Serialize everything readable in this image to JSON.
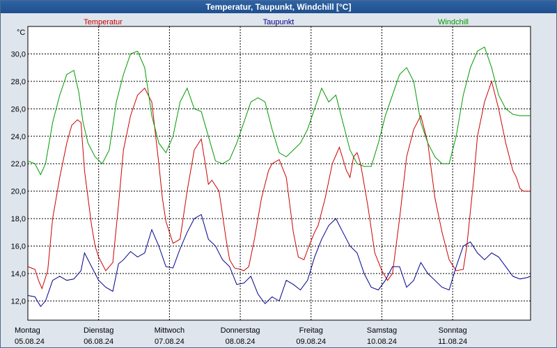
{
  "title": "Temperatur, Taupunkt, Windchill [°C]",
  "chart_data": {
    "type": "line",
    "title": "Temperatur, Taupunkt, Windchill [°C]",
    "ylabel": "°C",
    "ylim": [
      10.6,
      32.0
    ],
    "yticks": [
      12,
      14,
      16,
      18,
      20,
      22,
      24,
      26,
      28,
      30
    ],
    "ytick_labels": [
      "12,0",
      "14,0",
      "16,0",
      "18,0",
      "20,0",
      "22,0",
      "24,0",
      "26,0",
      "28,0",
      "30,0"
    ],
    "xlim": [
      0,
      7.1
    ],
    "x_days": [
      {
        "day": "Montag",
        "date": "05.08.24"
      },
      {
        "day": "Dienstag",
        "date": "06.08.24"
      },
      {
        "day": "Mittwoch",
        "date": "07.08.24"
      },
      {
        "day": "Donnerstag",
        "date": "08.08.24"
      },
      {
        "day": "Freitag",
        "date": "09.08.24"
      },
      {
        "day": "Samstag",
        "date": "10.08.24"
      },
      {
        "day": "Sonntag",
        "date": "11.08.24"
      }
    ],
    "grid": true,
    "legend_position": "top",
    "series": [
      {
        "name": "Temperatur",
        "color": "#cc0000",
        "x": [
          0.0,
          0.1,
          0.15,
          0.2,
          0.28,
          0.35,
          0.45,
          0.55,
          0.62,
          0.7,
          0.75,
          0.8,
          0.9,
          0.95,
          1.0,
          1.1,
          1.2,
          1.28,
          1.35,
          1.45,
          1.55,
          1.65,
          1.75,
          1.85,
          1.9,
          1.95,
          2.05,
          2.15,
          2.25,
          2.35,
          2.45,
          2.5,
          2.55,
          2.6,
          2.7,
          2.8,
          2.85,
          2.92,
          3.0,
          3.05,
          3.12,
          3.2,
          3.3,
          3.4,
          3.45,
          3.55,
          3.65,
          3.75,
          3.82,
          3.9,
          3.97,
          4.05,
          4.1,
          4.2,
          4.3,
          4.4,
          4.5,
          4.55,
          4.6,
          4.65,
          4.7,
          4.75,
          4.8,
          4.9,
          5.0,
          5.08,
          5.15,
          5.25,
          5.35,
          5.45,
          5.55,
          5.65,
          5.75,
          5.85,
          5.9,
          5.95,
          6.05,
          6.15,
          6.2,
          6.3,
          6.35,
          6.45,
          6.55,
          6.65,
          6.75,
          6.85,
          6.9,
          6.95,
          7.0,
          7.05,
          7.1
        ],
        "y": [
          14.5,
          14.3,
          13.5,
          12.9,
          14.2,
          18.0,
          21.0,
          23.5,
          24.8,
          25.2,
          25.0,
          21.5,
          17.5,
          16.0,
          15.2,
          14.2,
          14.8,
          19.0,
          23.0,
          25.5,
          27.0,
          27.5,
          26.5,
          22.0,
          19.5,
          17.8,
          16.2,
          16.5,
          20.0,
          23.0,
          23.8,
          22.2,
          20.5,
          20.8,
          20.0,
          16.5,
          15.0,
          14.4,
          14.3,
          14.2,
          14.5,
          16.5,
          19.5,
          21.5,
          22.0,
          22.3,
          21.0,
          17.0,
          15.2,
          15.0,
          16.0,
          17.0,
          17.5,
          19.5,
          22.0,
          23.2,
          21.5,
          21.0,
          22.5,
          22.8,
          22.0,
          20.5,
          19.0,
          15.5,
          14.2,
          13.5,
          14.0,
          18.0,
          22.5,
          24.5,
          25.5,
          23.5,
          19.5,
          17.0,
          16.0,
          15.0,
          14.2,
          14.3,
          16.0,
          21.0,
          24.0,
          26.5,
          28.0,
          26.0,
          23.5,
          21.5,
          21.0,
          20.2,
          20.0,
          20.0,
          20.0
        ]
      },
      {
        "name": "Taupunkt",
        "color": "#00008b",
        "x": [
          0.0,
          0.1,
          0.18,
          0.25,
          0.35,
          0.45,
          0.55,
          0.65,
          0.75,
          0.8,
          0.9,
          1.0,
          1.1,
          1.2,
          1.28,
          1.35,
          1.45,
          1.55,
          1.65,
          1.75,
          1.85,
          1.95,
          2.05,
          2.15,
          2.25,
          2.35,
          2.45,
          2.55,
          2.65,
          2.75,
          2.85,
          2.95,
          3.05,
          3.15,
          3.25,
          3.35,
          3.45,
          3.55,
          3.65,
          3.75,
          3.85,
          3.95,
          4.05,
          4.15,
          4.25,
          4.35,
          4.45,
          4.55,
          4.65,
          4.75,
          4.85,
          4.95,
          5.05,
          5.15,
          5.25,
          5.35,
          5.45,
          5.55,
          5.65,
          5.75,
          5.85,
          5.95,
          6.05,
          6.15,
          6.25,
          6.35,
          6.45,
          6.55,
          6.65,
          6.75,
          6.85,
          6.95,
          7.05,
          7.1
        ],
        "y": [
          12.4,
          12.3,
          11.6,
          12.0,
          13.5,
          13.8,
          13.5,
          13.6,
          14.2,
          15.5,
          14.5,
          13.5,
          13.0,
          12.7,
          14.7,
          15.0,
          15.6,
          15.2,
          15.5,
          17.2,
          16.0,
          14.5,
          14.4,
          15.8,
          17.0,
          18.0,
          18.3,
          16.5,
          16.0,
          15.0,
          14.5,
          13.2,
          13.3,
          13.8,
          12.5,
          11.8,
          12.3,
          12.0,
          13.5,
          13.2,
          12.8,
          13.5,
          15.2,
          16.5,
          17.5,
          18.0,
          17.0,
          16.0,
          15.5,
          14.0,
          13.0,
          12.8,
          13.5,
          14.5,
          14.5,
          13.0,
          13.5,
          14.8,
          14.0,
          13.5,
          13.0,
          12.8,
          14.5,
          16.0,
          16.3,
          15.5,
          15.0,
          15.5,
          15.2,
          14.5,
          13.8,
          13.6,
          13.7,
          13.8
        ]
      },
      {
        "name": "Windchill",
        "color": "#009900",
        "x": [
          0.0,
          0.1,
          0.18,
          0.25,
          0.35,
          0.45,
          0.55,
          0.65,
          0.72,
          0.78,
          0.85,
          0.95,
          1.05,
          1.15,
          1.25,
          1.35,
          1.45,
          1.55,
          1.65,
          1.75,
          1.85,
          1.95,
          2.05,
          2.15,
          2.25,
          2.35,
          2.45,
          2.55,
          2.65,
          2.75,
          2.85,
          2.95,
          3.05,
          3.15,
          3.25,
          3.35,
          3.45,
          3.55,
          3.65,
          3.75,
          3.85,
          3.95,
          4.05,
          4.15,
          4.25,
          4.35,
          4.45,
          4.55,
          4.65,
          4.75,
          4.85,
          4.95,
          5.05,
          5.15,
          5.25,
          5.35,
          5.45,
          5.55,
          5.65,
          5.75,
          5.85,
          5.95,
          6.05,
          6.15,
          6.25,
          6.35,
          6.45,
          6.55,
          6.65,
          6.75,
          6.85,
          6.95,
          7.05,
          7.1
        ],
        "y": [
          22.2,
          22.0,
          21.2,
          22.0,
          25.0,
          27.0,
          28.5,
          28.8,
          27.2,
          25.0,
          23.5,
          22.5,
          22.0,
          23.0,
          26.5,
          28.5,
          30.0,
          30.2,
          29.0,
          25.5,
          23.5,
          22.8,
          24.0,
          26.5,
          27.5,
          26.0,
          25.8,
          24.0,
          22.2,
          22.0,
          22.3,
          23.5,
          25.0,
          26.5,
          26.8,
          26.5,
          24.5,
          22.8,
          22.5,
          23.0,
          23.5,
          24.5,
          26.0,
          27.5,
          26.5,
          27.0,
          25.0,
          23.0,
          22.0,
          21.8,
          21.8,
          23.5,
          25.5,
          27.0,
          28.5,
          29.0,
          28.0,
          25.0,
          23.5,
          22.5,
          22.0,
          22.0,
          24.0,
          27.0,
          29.0,
          30.2,
          30.5,
          29.0,
          27.0,
          26.0,
          25.6,
          25.5,
          25.5,
          25.5
        ]
      }
    ]
  }
}
